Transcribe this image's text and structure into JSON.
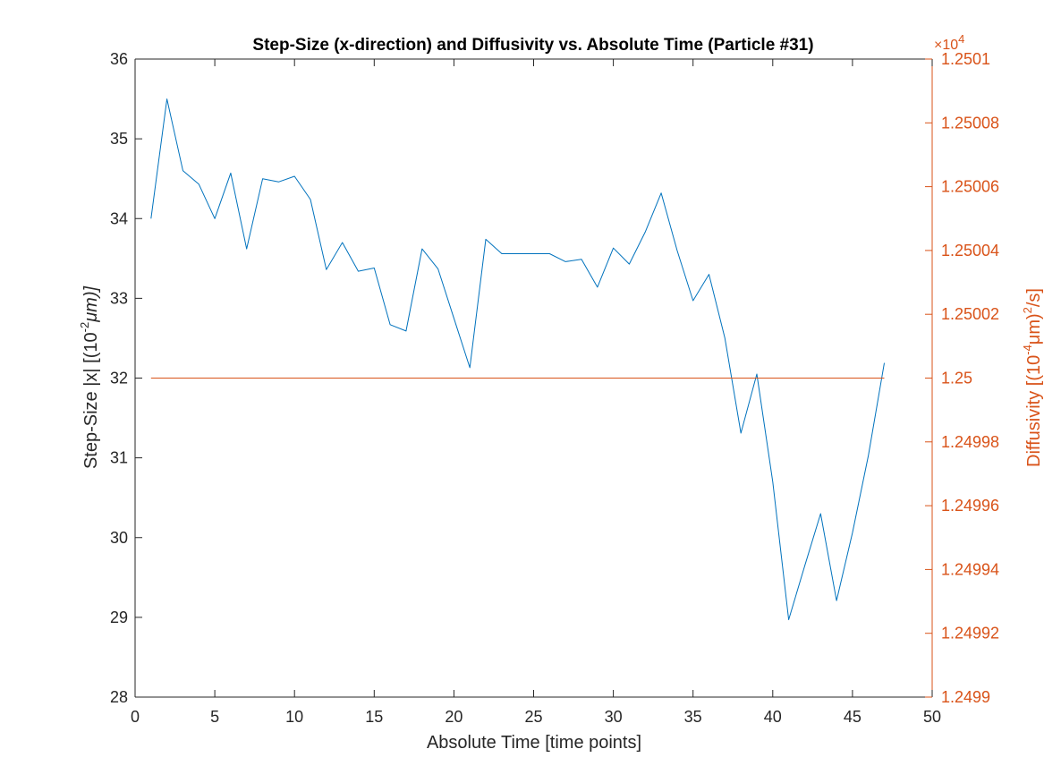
{
  "chart_data": {
    "type": "line",
    "title": "Step-Size (x-direction) and Diffusivity vs. Absolute Time (Particle #31)",
    "xlabel": "Absolute Time [time points]",
    "ylabel_left": {
      "base": "Step-Size |x| [(10",
      "exp": "-2",
      "tail": "μm)]"
    },
    "ylabel_right": {
      "base": "Diffusivity [(10",
      "exp1": "-4",
      "mid": "μm)",
      "exp2": "2",
      "tail": "/s]"
    },
    "right_axis_multiplier": {
      "base": "×10",
      "exp": "4"
    },
    "xlim": [
      0,
      50
    ],
    "ylim_left": [
      28,
      36
    ],
    "ylim_right": [
      1.2499,
      1.2501
    ],
    "x_ticks": [
      "0",
      "5",
      "10",
      "15",
      "20",
      "25",
      "30",
      "35",
      "40",
      "45",
      "50"
    ],
    "x_tick_values": [
      0,
      5,
      10,
      15,
      20,
      25,
      30,
      35,
      40,
      45,
      50
    ],
    "y_left_ticks": [
      "28",
      "29",
      "30",
      "31",
      "32",
      "33",
      "34",
      "35",
      "36"
    ],
    "y_left_tick_values": [
      28,
      29,
      30,
      31,
      32,
      33,
      34,
      35,
      36
    ],
    "y_right_ticks": [
      "1.2499",
      "1.24992",
      "1.24994",
      "1.24996",
      "1.24998",
      "1.25",
      "1.25002",
      "1.25004",
      "1.25006",
      "1.25008",
      "1.2501"
    ],
    "y_right_tick_values": [
      1.2499,
      1.24992,
      1.24994,
      1.24996,
      1.24998,
      1.25,
      1.25002,
      1.25004,
      1.25006,
      1.25008,
      1.2501
    ],
    "grid": false,
    "colors": {
      "left": "#0072BD",
      "right": "#D95319",
      "axes": "#262626"
    },
    "series": [
      {
        "axis": "left",
        "color": "#0072BD",
        "x": [
          1,
          2,
          3,
          4,
          5,
          6,
          7,
          8,
          9,
          10,
          11,
          12,
          13,
          14,
          15,
          16,
          17,
          18,
          19,
          20,
          21,
          22,
          23,
          24,
          25,
          26,
          27,
          28,
          29,
          30,
          31,
          32,
          33,
          34,
          35,
          36,
          37,
          38,
          39,
          40,
          41,
          42,
          43,
          44,
          45,
          46,
          47
        ],
        "values": [
          34.0,
          35.5,
          34.6,
          34.43,
          34.0,
          34.57,
          33.62,
          34.5,
          34.46,
          34.53,
          34.24,
          33.36,
          33.7,
          33.34,
          33.38,
          32.67,
          32.59,
          33.62,
          33.37,
          32.75,
          32.13,
          33.74,
          33.56,
          33.56,
          33.56,
          33.56,
          33.46,
          33.49,
          33.14,
          33.63,
          33.43,
          33.83,
          34.32,
          33.6,
          32.97,
          33.3,
          32.5,
          31.31,
          32.05,
          30.7,
          28.97,
          29.64,
          30.3,
          29.21,
          30.06,
          31.03,
          32.19
        ]
      },
      {
        "axis": "right",
        "color": "#D95319",
        "x": [
          1,
          2,
          3,
          4,
          5,
          6,
          7,
          8,
          9,
          10,
          11,
          12,
          13,
          14,
          15,
          16,
          17,
          18,
          19,
          20,
          21,
          22,
          23,
          24,
          25,
          26,
          27,
          28,
          29,
          30,
          31,
          32,
          33,
          34,
          35,
          36,
          37,
          38,
          39,
          40,
          41,
          42,
          43,
          44,
          45,
          46,
          47
        ],
        "values": [
          1.25,
          1.25,
          1.25,
          1.25,
          1.25,
          1.25,
          1.25,
          1.25,
          1.25,
          1.25,
          1.25,
          1.25,
          1.25,
          1.25,
          1.25,
          1.25,
          1.25,
          1.25,
          1.25,
          1.25,
          1.25,
          1.25,
          1.25,
          1.25,
          1.25,
          1.25,
          1.25,
          1.25,
          1.25,
          1.25,
          1.25,
          1.25,
          1.25,
          1.25,
          1.25,
          1.25,
          1.25,
          1.25,
          1.25,
          1.25,
          1.25,
          1.25,
          1.25,
          1.25,
          1.25,
          1.25,
          1.25
        ]
      }
    ]
  }
}
